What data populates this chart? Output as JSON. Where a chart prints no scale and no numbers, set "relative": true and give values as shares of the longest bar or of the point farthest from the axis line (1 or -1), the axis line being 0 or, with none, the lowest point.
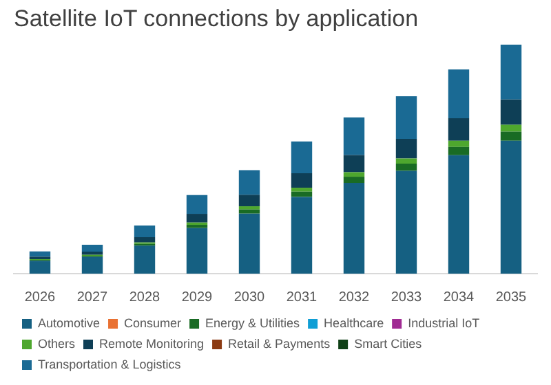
{
  "chart_data": {
    "type": "bar",
    "title": "Satellite IoT connections by application",
    "stacked": true,
    "relative": true,
    "legend": "bottom",
    "categories": [
      "2026",
      "2027",
      "2028",
      "2029",
      "2030",
      "2031",
      "2032",
      "2033",
      "2034",
      "2035"
    ],
    "series": [
      {
        "name": "Automotive",
        "color": "#156082",
        "values": [
          0.056,
          0.073,
          0.122,
          0.199,
          0.262,
          0.335,
          0.396,
          0.449,
          0.517,
          0.58
        ]
      },
      {
        "name": "Consumer",
        "color": "#e97132",
        "values": [
          0,
          0,
          0,
          0,
          0,
          0,
          0,
          0,
          0,
          0
        ]
      },
      {
        "name": "Energy & Utilities",
        "color": "#196b24",
        "values": [
          0.004,
          0.005,
          0.008,
          0.014,
          0.018,
          0.023,
          0.027,
          0.031,
          0.036,
          0.04
        ]
      },
      {
        "name": "Healthcare",
        "color": "#0f9ed5",
        "values": [
          0,
          0,
          0,
          0,
          0,
          0,
          0,
          0,
          0,
          0
        ]
      },
      {
        "name": "Industrial IoT",
        "color": "#a02b93",
        "values": [
          0,
          0,
          0,
          0,
          0,
          0,
          0,
          0,
          0,
          0
        ]
      },
      {
        "name": "Others",
        "color": "#4ea72e",
        "values": [
          0.003,
          0.004,
          0.006,
          0.01,
          0.014,
          0.017,
          0.02,
          0.023,
          0.027,
          0.03
        ]
      },
      {
        "name": "Remote Monitoring",
        "color": "#0e3f56",
        "values": [
          0.011,
          0.014,
          0.023,
          0.038,
          0.05,
          0.063,
          0.075,
          0.085,
          0.098,
          0.11
        ]
      },
      {
        "name": "Retail & Payments",
        "color": "#8b3a12",
        "values": [
          0,
          0,
          0,
          0,
          0,
          0,
          0,
          0,
          0,
          0
        ]
      },
      {
        "name": "Smart Cities",
        "color": "#0f4016",
        "values": [
          0,
          0,
          0,
          0,
          0,
          0,
          0,
          0,
          0,
          0
        ]
      },
      {
        "name": "Transportation & Logistics",
        "color": "#1a6a94",
        "values": [
          0.023,
          0.03,
          0.051,
          0.082,
          0.108,
          0.139,
          0.164,
          0.186,
          0.213,
          0.24
        ]
      }
    ]
  }
}
